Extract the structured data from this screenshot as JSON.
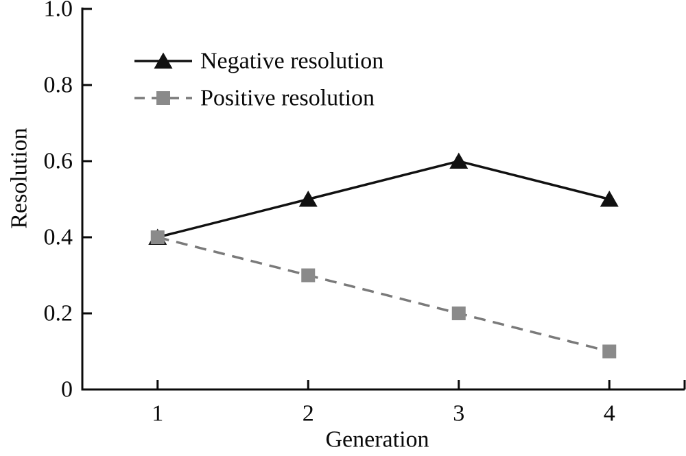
{
  "chart_data": {
    "type": "line",
    "title": "",
    "xlabel": "Generation",
    "ylabel": "Resolution",
    "x": [
      1,
      2,
      3,
      4
    ],
    "xlim": [
      0.5,
      4.5
    ],
    "ylim": [
      0,
      1
    ],
    "x_ticks": {
      "values": [
        1,
        2,
        3,
        4
      ],
      "labels": [
        "1",
        "2",
        "3",
        "4"
      ],
      "axis_end_tick": 4.5
    },
    "y_ticks": {
      "values": [
        0,
        0.2,
        0.4,
        0.6,
        0.8,
        1.0
      ],
      "labels": [
        "0",
        "0.2",
        "0.4",
        "0.6",
        "0.8",
        "1.0"
      ]
    },
    "grid": false,
    "background": "#ffffff",
    "axis_color": "#0a0a0a",
    "legend": {
      "position": "upper-left"
    },
    "series": [
      {
        "name": "Negative resolution",
        "values": [
          0.4,
          0.5,
          0.6,
          0.5
        ],
        "line_color": "#111111",
        "line_style": "solid",
        "marker": "triangle-up",
        "marker_color": "#111111"
      },
      {
        "name": "Positive resolution",
        "values": [
          0.4,
          0.3,
          0.2,
          0.1
        ],
        "line_color": "#7a7a7a",
        "line_style": "dashed",
        "marker": "square",
        "marker_color": "#8a8a8a"
      }
    ]
  }
}
